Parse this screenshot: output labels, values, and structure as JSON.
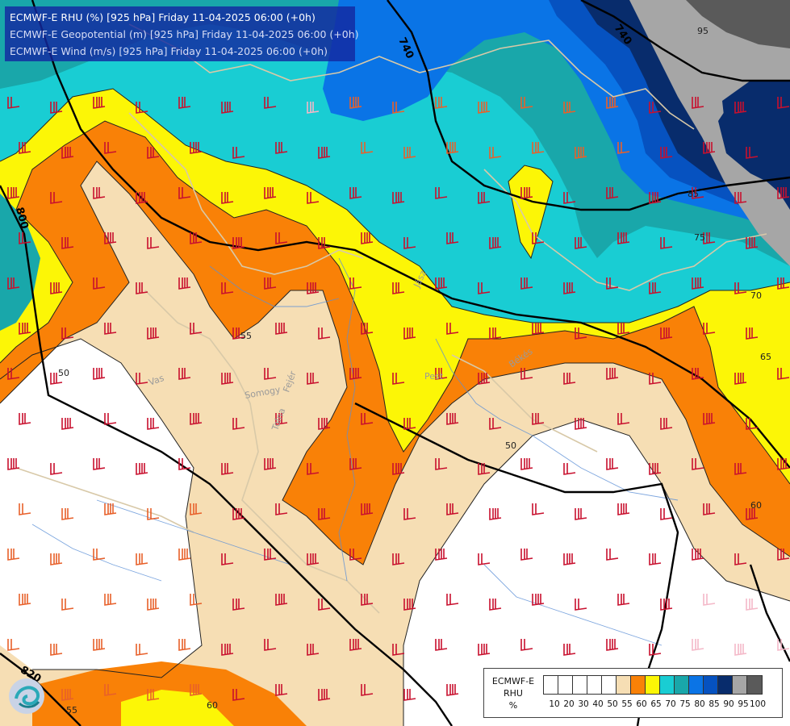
{
  "title": {
    "line1": "ECMWF-E RHU (%) [925 hPa] Friday 11-04-2025 06:00 (+0h)",
    "line2": "ECMWF-E Geopotential (m) [925 hPa] Friday 11-04-2025 06:00 (+0h)",
    "line3": "ECMWF-E Wind (m/s) [925 hPa] Friday 11-04-2025 06:00 (+0h)"
  },
  "colors": {
    "rh_50_55": "#f6deb4",
    "rh_55_60": "#f98107",
    "rh_60_65": "#fcf606",
    "rh_65_70": "#19cdd3",
    "rh_70_75": "#19a7aa",
    "rh_75_80": "#0a74e6",
    "rh_80_85": "#0652c0",
    "rh_85_90": "#082c6c",
    "rh_90_95": "#a6a6a6",
    "rh_95_100": "#5a5a5a"
  },
  "geopotential_labels": [
    "740",
    "800",
    "820"
  ],
  "rh_contour_labels": [
    "95",
    "85",
    "75",
    "70",
    "65",
    "60",
    "55",
    "50",
    "50",
    "55",
    "60",
    "55"
  ],
  "place_labels": [
    "Vas",
    "Somogy",
    "Tolna",
    "Fejér",
    "Pest",
    "Békés",
    "Jász"
  ],
  "legend": {
    "title_line1": "ECMWF-E",
    "title_line2": "RHU",
    "title_line3": "%",
    "ticks": [
      "10",
      "20",
      "30",
      "40",
      "50",
      "55",
      "60",
      "65",
      "70",
      "75",
      "80",
      "85",
      "90",
      "95",
      "100"
    ],
    "swatches": [
      "#ffffff",
      "#ffffff",
      "#ffffff",
      "#ffffff",
      "#ffffff",
      "#f6deb4",
      "#f98107",
      "#fcf606",
      "#19cdd3",
      "#19a7aa",
      "#0a74e6",
      "#0652c0",
      "#082c6c",
      "#a6a6a6",
      "#5a5a5a"
    ]
  }
}
